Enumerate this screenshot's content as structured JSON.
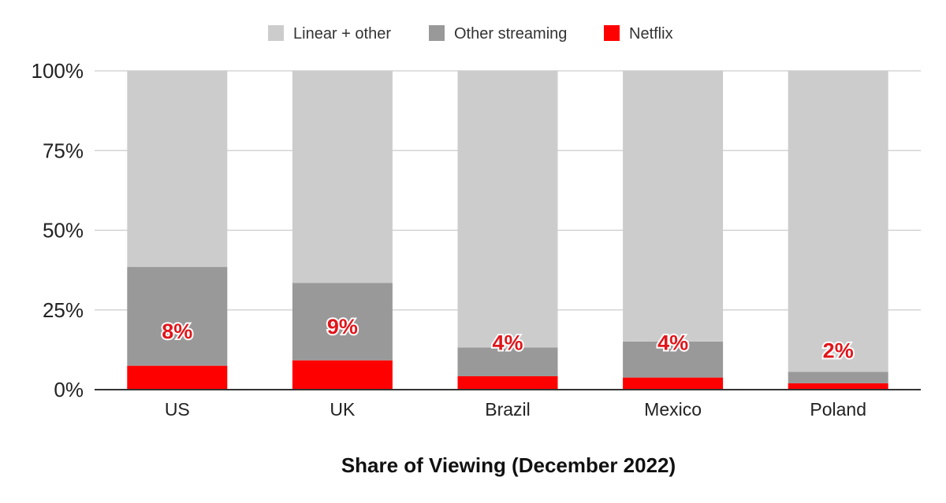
{
  "chart_data": {
    "type": "bar",
    "stacked": true,
    "categories": [
      "US",
      "UK",
      "Brazil",
      "Mexico",
      "Poland"
    ],
    "series": [
      {
        "name": "Netflix",
        "color": "#ff0000",
        "values": [
          7.5,
          9.2,
          4.2,
          3.8,
          2.0
        ]
      },
      {
        "name": "Other streaming",
        "color": "#999999",
        "values": [
          31.0,
          24.3,
          9.0,
          11.3,
          3.6
        ]
      },
      {
        "name": "Linear + other",
        "color": "#cccccc",
        "values": [
          61.5,
          66.5,
          86.8,
          84.9,
          94.4
        ]
      }
    ],
    "legend_order": [
      "Linear + other",
      "Other streaming",
      "Netflix"
    ],
    "data_labels": [
      "8%",
      "9%",
      "4%",
      "4%",
      "2%"
    ],
    "data_labels_values": [
      18.5,
      20,
      15,
      15,
      12.5
    ],
    "xlabel": "Share of Viewing (December 2022)",
    "ylabel": "",
    "ylim": [
      0,
      100
    ],
    "yticks": [
      0,
      25,
      50,
      75,
      100
    ],
    "ytick_labels": [
      "0%",
      "25%",
      "50%",
      "75%",
      "100%"
    ],
    "grid": true,
    "legend_position": "top-center",
    "gridline_color": "#cccccc",
    "axis_color": "#333333",
    "data_label_color": "#e0161b"
  }
}
